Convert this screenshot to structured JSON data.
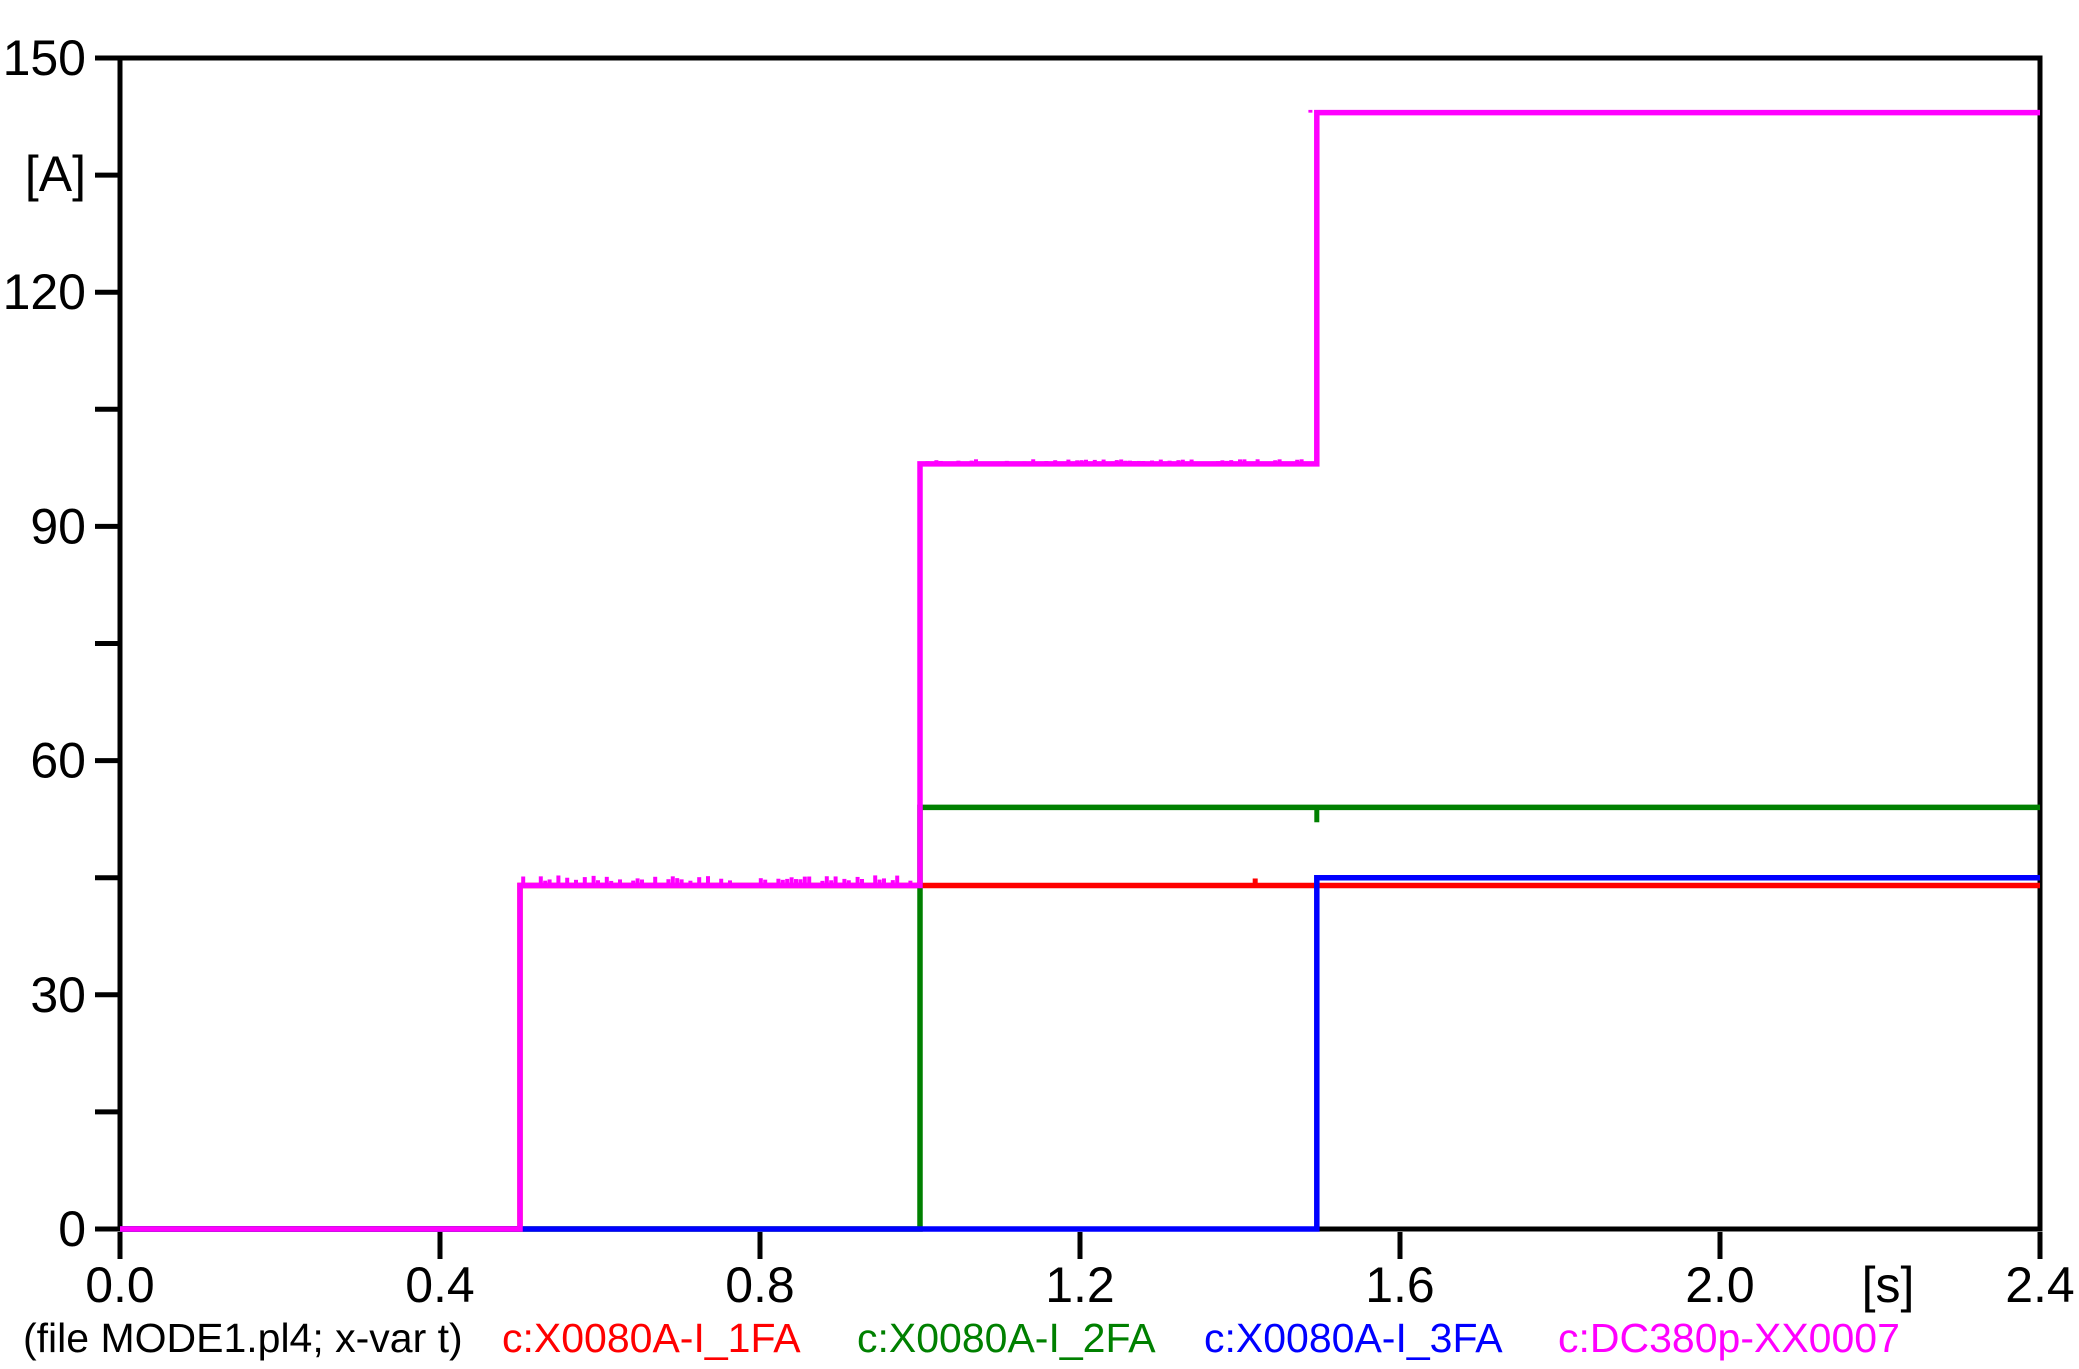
{
  "figure": {
    "background": "#ffffff",
    "axis_color": "#000000"
  },
  "footer": {
    "file_note": "(file MODE1.pl4; x-var t)"
  },
  "chart_data": {
    "type": "line",
    "subtype": "step",
    "title": "",
    "xlabel": "[s]",
    "ylabel": "[A]",
    "xlim": [
      0.0,
      2.4
    ],
    "ylim": [
      0,
      150
    ],
    "grid": false,
    "legend_position": "bottom",
    "x_tick_labels": [
      "0.0",
      "0.4",
      "0.8",
      "1.2",
      "1.6",
      "2.0",
      "2.4"
    ],
    "x_tick_values": [
      0.0,
      0.4,
      0.8,
      1.2,
      1.6,
      2.0,
      2.4
    ],
    "x_unit_label": "[s]",
    "x_unit_position": 2.21,
    "y_tick_labels": [
      "0",
      "30",
      "60",
      "90",
      "120",
      "150"
    ],
    "y_tick_values": [
      0,
      30,
      60,
      90,
      120,
      150
    ],
    "y_minor_tick_values": [
      15,
      45,
      75,
      105,
      135
    ],
    "y_unit_label": "[A]",
    "y_unit_position": 135,
    "series": [
      {
        "name": "c:X0080A-I_1FA",
        "color": "#ff0000",
        "points": [
          [
            0.0,
            0
          ],
          [
            0.5,
            0
          ],
          [
            0.5,
            44
          ],
          [
            2.4,
            44
          ]
        ],
        "glitches": [
          {
            "t": 1.419,
            "amp": 0.9
          }
        ]
      },
      {
        "name": "c:X0080A-I_2FA",
        "color": "#008000",
        "points": [
          [
            0.0,
            0
          ],
          [
            1.0,
            0
          ],
          [
            1.0,
            54
          ],
          [
            2.4,
            54
          ]
        ],
        "glitches": [
          {
            "t": 1.496,
            "amp": -1.9
          }
        ]
      },
      {
        "name": "c:X0080A-I_3FA",
        "color": "#0000ff",
        "points": [
          [
            0.0,
            0
          ],
          [
            1.496,
            0
          ],
          [
            1.496,
            45
          ],
          [
            2.4,
            45
          ]
        ],
        "glitches": []
      },
      {
        "name": "c:DC380p-XX0007",
        "color": "#ff00ff",
        "points": [
          [
            0.0,
            0
          ],
          [
            0.5,
            0
          ],
          [
            0.5,
            44
          ],
          [
            1.0,
            44
          ],
          [
            1.0,
            98
          ],
          [
            1.496,
            98
          ],
          [
            1.496,
            143
          ],
          [
            2.4,
            143
          ]
        ],
        "noise": [
          {
            "t0": 0.5,
            "t1": 1.0,
            "amp": 1.3
          },
          {
            "t0": 1.0,
            "t1": 1.496,
            "amp": 0.6
          }
        ],
        "glitches": []
      }
    ]
  }
}
